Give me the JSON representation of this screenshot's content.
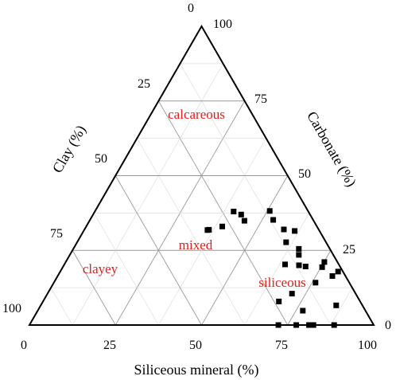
{
  "chart_data": {
    "type": "scatter",
    "title": "",
    "xlabel": "Siliceous mineral (%)",
    "left_label": "Clay (%)",
    "right_label": "Carbonate (%)",
    "bottom_ticks": [
      "0",
      "25",
      "50",
      "75",
      "100"
    ],
    "left_ticks": [
      "0",
      "25",
      "50",
      "75",
      "100"
    ],
    "right_ticks": [
      "0",
      "25",
      "50",
      "75",
      "100"
    ],
    "region_labels": [
      "calcareous",
      "mixed",
      "clayey",
      "siliceous"
    ],
    "colors": {
      "region_label": "#e0201b",
      "points": "#000000",
      "frame": "#000000",
      "grid": "#999999"
    },
    "grid": true,
    "axis_range": [
      0,
      100
    ],
    "marker": "square",
    "points": [
      {
        "siliceous": 39.5,
        "clay": 27.5,
        "carbonate": 52.5
      },
      {
        "siliceous": 43,
        "clay": 20,
        "carbonate": 51
      },
      {
        "siliceous": 40.3,
        "clay": 21.7,
        "carbonate": 45.2
      },
      {
        "siliceous": 36.2,
        "clay": 31.9,
        "carbonate": 37.2
      },
      {
        "siliceous": 35.8,
        "clay": 32.4,
        "carbonate": 38.1
      },
      {
        "siliceous": 45,
        "clay": 20.1,
        "carbonate": 40.3
      },
      {
        "siliceous": 50.7,
        "clay": 11.1,
        "carbonate": 40.2
      },
      {
        "siliceous": 53.2,
        "clay": 11.6,
        "carbonate": 37.5
      },
      {
        "siliceous": 57.9,
        "clay": 10.1,
        "carbonate": 35.2
      },
      {
        "siliceous": 60.7,
        "clay": 11.6,
        "carbonate": 30.9
      },
      {
        "siliceous": 65.5,
        "clay": 9,
        "carbonate": 25.8
      },
      {
        "siliceous": 68.3,
        "clay": 11.7,
        "carbonate": 20.2
      },
      {
        "siliceous": 70.4,
        "clay": 10,
        "carbonate": 20.1
      },
      {
        "siliceous": 75.3,
        "clay": 5.3,
        "carbonate": 19.4
      },
      {
        "siliceous": 75.1,
        "clay": 3.8,
        "carbonate": 16.2
      },
      {
        "siliceous": 66.5,
        "clay": 10,
        "carbonate": 23.5
      },
      {
        "siliceous": 61.3,
        "clay": 7.2,
        "carbonate": 31.5
      },
      {
        "siliceous": 80.7,
        "clay": 1.4,
        "carbonate": 17.9
      },
      {
        "siliceous": 76,
        "clay": 9.8,
        "carbonate": 14.2
      },
      {
        "siliceous": 79.8,
        "clay": 3.8,
        "carbonate": 16.4
      },
      {
        "siliceous": 64.1,
        "clay": 15.6,
        "carbonate": 20.3
      },
      {
        "siliceous": 68.5,
        "clay": 23.6,
        "carbonate": 7.9
      },
      {
        "siliceous": 71,
        "clay": 18.5,
        "carbonate": 10.5
      },
      {
        "siliceous": 72.3,
        "clay": 27.7,
        "carbonate": 0
      },
      {
        "siliceous": 77,
        "clay": 18.2,
        "carbonate": 4.8
      },
      {
        "siliceous": 82.5,
        "clay": 17.5,
        "carbonate": 0
      },
      {
        "siliceous": 85.8,
        "clay": 7.6,
        "carbonate": 6.6
      },
      {
        "siliceous": 88.5,
        "clay": 11.5,
        "carbonate": 0
      },
      {
        "siliceous": 81.2,
        "clay": 18.8,
        "carbonate": 0
      },
      {
        "siliceous": 77.5,
        "clay": 22.5,
        "carbonate": 0
      }
    ]
  }
}
